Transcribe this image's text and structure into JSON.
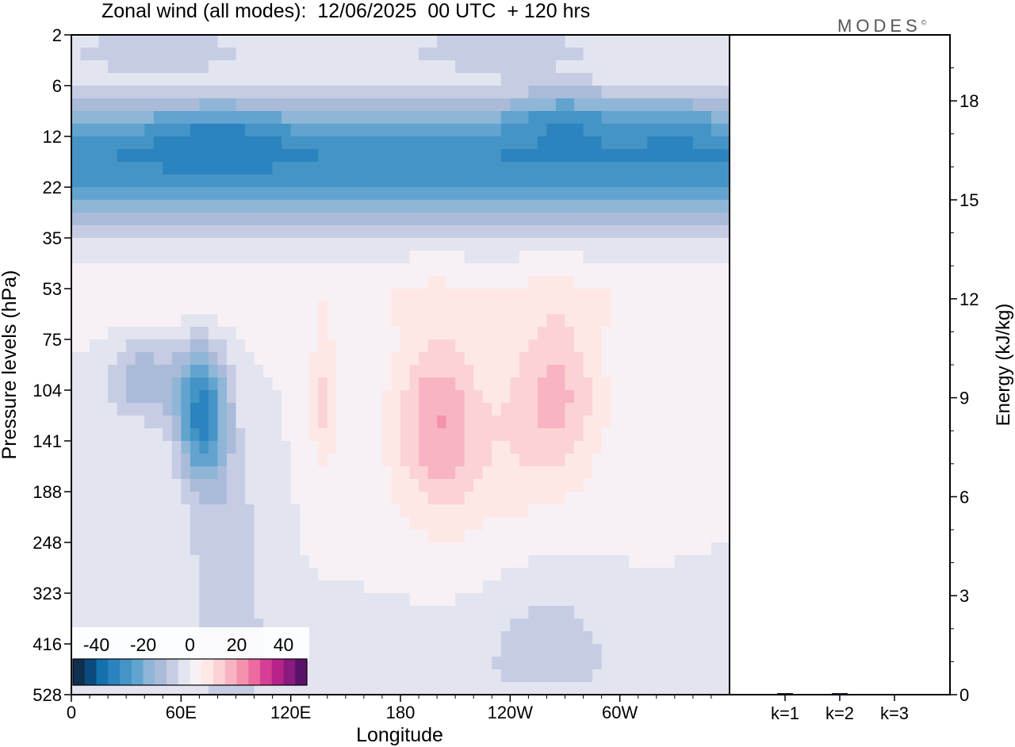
{
  "page": {
    "title": "Zonal wind (all modes):  12/06/2025  00 UTC  + 120 hrs",
    "logo_text": "MODES",
    "logo_mark": "©"
  },
  "chart_data": [
    {
      "type": "heatmap",
      "title": "Zonal wind (all modes):  12/06/2025  00 UTC  + 120 hrs",
      "xlabel": "Longitude",
      "ylabel": "Pressure levels (hPa)",
      "x_ticks": [
        "0",
        "60E",
        "120E",
        "180",
        "120W",
        "60W"
      ],
      "x_tick_values": [
        0,
        60,
        120,
        180,
        240,
        300
      ],
      "x_range": [
        0,
        360
      ],
      "y_ticks": [
        "2",
        "6",
        "12",
        "22",
        "35",
        "53",
        "75",
        "104",
        "141",
        "188",
        "248",
        "323",
        "416",
        "528"
      ],
      "y_scale": "ordinal levels, top 2 hPa to bottom 528 hPa",
      "colorbar": {
        "labels": [
          "-40",
          "-20",
          "0",
          "20",
          "40"
        ],
        "label_values": [
          -40,
          -20,
          0,
          20,
          40
        ],
        "levels": [
          -45,
          -40,
          -35,
          -30,
          -25,
          -20,
          -15,
          -10,
          -5,
          0,
          5,
          10,
          15,
          20,
          25,
          30,
          35,
          40,
          45
        ],
        "colors": [
          "#0f2f4f",
          "#0a4a7f",
          "#1471ad",
          "#2b84bf",
          "#4494c6",
          "#62a4cf",
          "#8fb6d6",
          "#aabbd9",
          "#c6cce3",
          "#e2e4f0",
          "#f7f0f5",
          "#fde8e5",
          "#fbd3d5",
          "#f8b4c2",
          "#f492ae",
          "#ed6aa1",
          "#d63f95",
          "#b8238a",
          "#8a1a7d",
          "#5a1269"
        ],
        "placement": "bottom-left inside plot"
      },
      "fields": [
        {
          "region": "upper stratospheric easterly band",
          "pressure_hPa": [
            8,
            25
          ],
          "u_ms": -30
        },
        {
          "region": "easterly core",
          "longitude": [
            60,
            100
          ],
          "pressure_hPa": [
            10,
            16
          ],
          "u_ms": -40
        },
        {
          "region": "easterly core",
          "longitude": [
            250,
            290
          ],
          "pressure_hPa": [
            9,
            13
          ],
          "u_ms": -45
        },
        {
          "region": "tropical easterly jet",
          "longitude": [
            55,
            95
          ],
          "pressure_hPa": [
            90,
            190
          ],
          "u_ms": -35
        },
        {
          "region": "westerlies",
          "longitude": [
            130,
            310
          ],
          "pressure_hPa": [
            60,
            300
          ],
          "u_ms": 15
        }
      ]
    },
    {
      "type": "bar",
      "categories": [
        "k=1",
        "k=2",
        "k=3"
      ],
      "values": [
        0.02,
        0.01,
        0.0
      ],
      "ylabel": "Energy (kJ/kg)",
      "ylim": [
        0,
        20
      ],
      "y_ticks": [
        "0",
        "3",
        "6",
        "9",
        "12",
        "15",
        "18"
      ],
      "y_tick_values": [
        0,
        3,
        6,
        9,
        12,
        15,
        18
      ],
      "bar_color": "#1a1a4a"
    }
  ]
}
